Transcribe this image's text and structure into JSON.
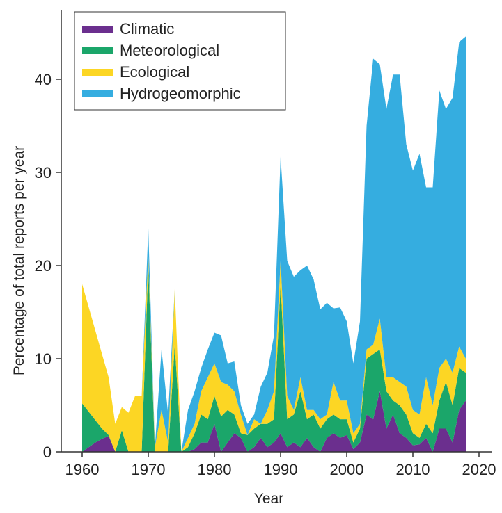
{
  "chart_data": {
    "type": "area",
    "stacked": true,
    "xlabel": "Year",
    "ylabel": "Percentage of total reports per year",
    "xlim": [
      1957,
      2021
    ],
    "ylim": [
      0,
      46
    ],
    "xticks": [
      1960,
      1970,
      1980,
      1990,
      2000,
      2010,
      2020
    ],
    "yticks": [
      0,
      10,
      20,
      30,
      40
    ],
    "grid": false,
    "legend_position": "top-left",
    "x": [
      1960,
      1961,
      1962,
      1963,
      1964,
      1965,
      1966,
      1967,
      1968,
      1969,
      1970,
      1971,
      1972,
      1973,
      1974,
      1975,
      1976,
      1977,
      1978,
      1979,
      1980,
      1981,
      1982,
      1983,
      1984,
      1985,
      1986,
      1987,
      1988,
      1989,
      1990,
      1991,
      1992,
      1993,
      1994,
      1995,
      1996,
      1997,
      1998,
      1999,
      2000,
      2001,
      2002,
      2003,
      2004,
      2005,
      2006,
      2007,
      2008,
      2009,
      2010,
      2011,
      2012,
      2013,
      2014,
      2015,
      2016,
      2017,
      2018
    ],
    "series": [
      {
        "name": "Climatic",
        "color": "#6b2f8e",
        "values": [
          0,
          0.5,
          1,
          1.4,
          1.7,
          0,
          0,
          0,
          0,
          0,
          0,
          0,
          0,
          0,
          0,
          0,
          0,
          0.3,
          1,
          1,
          3,
          0,
          1,
          2,
          1.5,
          0,
          0.5,
          1.5,
          0.5,
          1,
          2,
          0.5,
          1,
          0.5,
          1.5,
          0.5,
          0,
          1.5,
          2,
          1.5,
          1.8,
          0.3,
          1,
          4,
          3.5,
          6.5,
          2.5,
          4,
          2,
          1.5,
          0.7,
          0.8,
          1.5,
          0,
          2.5,
          2.5,
          1,
          4.5,
          5.5
        ]
      },
      {
        "name": "Meteorological",
        "color": "#1ba66a",
        "values": [
          5.2,
          3.8,
          2.4,
          1.1,
          0.1,
          0,
          2.3,
          0,
          0,
          0,
          20,
          0,
          0,
          0,
          11.5,
          0,
          0.5,
          1.7,
          3,
          2.5,
          3,
          3.8,
          3.5,
          2,
          0.5,
          1.8,
          2,
          1.5,
          2.5,
          2.5,
          16,
          3,
          3,
          6,
          2,
          3.5,
          2.5,
          2,
          2,
          2,
          1.7,
          0.7,
          1.5,
          6,
          7,
          4.5,
          4,
          1.5,
          3,
          2.5,
          1.3,
          0.7,
          1.5,
          2,
          3,
          5,
          4,
          4.5,
          3
        ]
      },
      {
        "name": "Ecological",
        "color": "#fcd624",
        "values": [
          12.8,
          11.2,
          9.6,
          8,
          6.2,
          3,
          2.5,
          4.2,
          6,
          6,
          1,
          0.5,
          4.5,
          1,
          6,
          0,
          1,
          1,
          2.5,
          4.5,
          3.5,
          3.7,
          2.7,
          2.5,
          2,
          0,
          1,
          0,
          1.5,
          3,
          2.5,
          2.5,
          0.5,
          1.5,
          1,
          0.5,
          1,
          0.5,
          3.5,
          2,
          2,
          1,
          0.5,
          1,
          1,
          3.3,
          1.5,
          2.5,
          2.5,
          3,
          2.5,
          2.5,
          5,
          3,
          3.5,
          2.5,
          3.5,
          2.3,
          1.5
        ]
      },
      {
        "name": "Hydrogeomorphic",
        "color": "#35ade0",
        "values": [
          0,
          0,
          0,
          0,
          0,
          0,
          0,
          0,
          0,
          0,
          3,
          0,
          6.5,
          3,
          0,
          0,
          3,
          3.5,
          2.5,
          3,
          3.3,
          5,
          2.3,
          3.2,
          1,
          1.2,
          0.5,
          4,
          4,
          6,
          11.2,
          14.5,
          14.3,
          11.5,
          15.5,
          14,
          11.8,
          12,
          7.9,
          10,
          8.5,
          7.5,
          11,
          24,
          30.7,
          27.3,
          28.8,
          32.5,
          33,
          26,
          25.7,
          28,
          20.4,
          23.4,
          29.8,
          26.8,
          29.5,
          32.7,
          34.6
        ]
      }
    ]
  }
}
